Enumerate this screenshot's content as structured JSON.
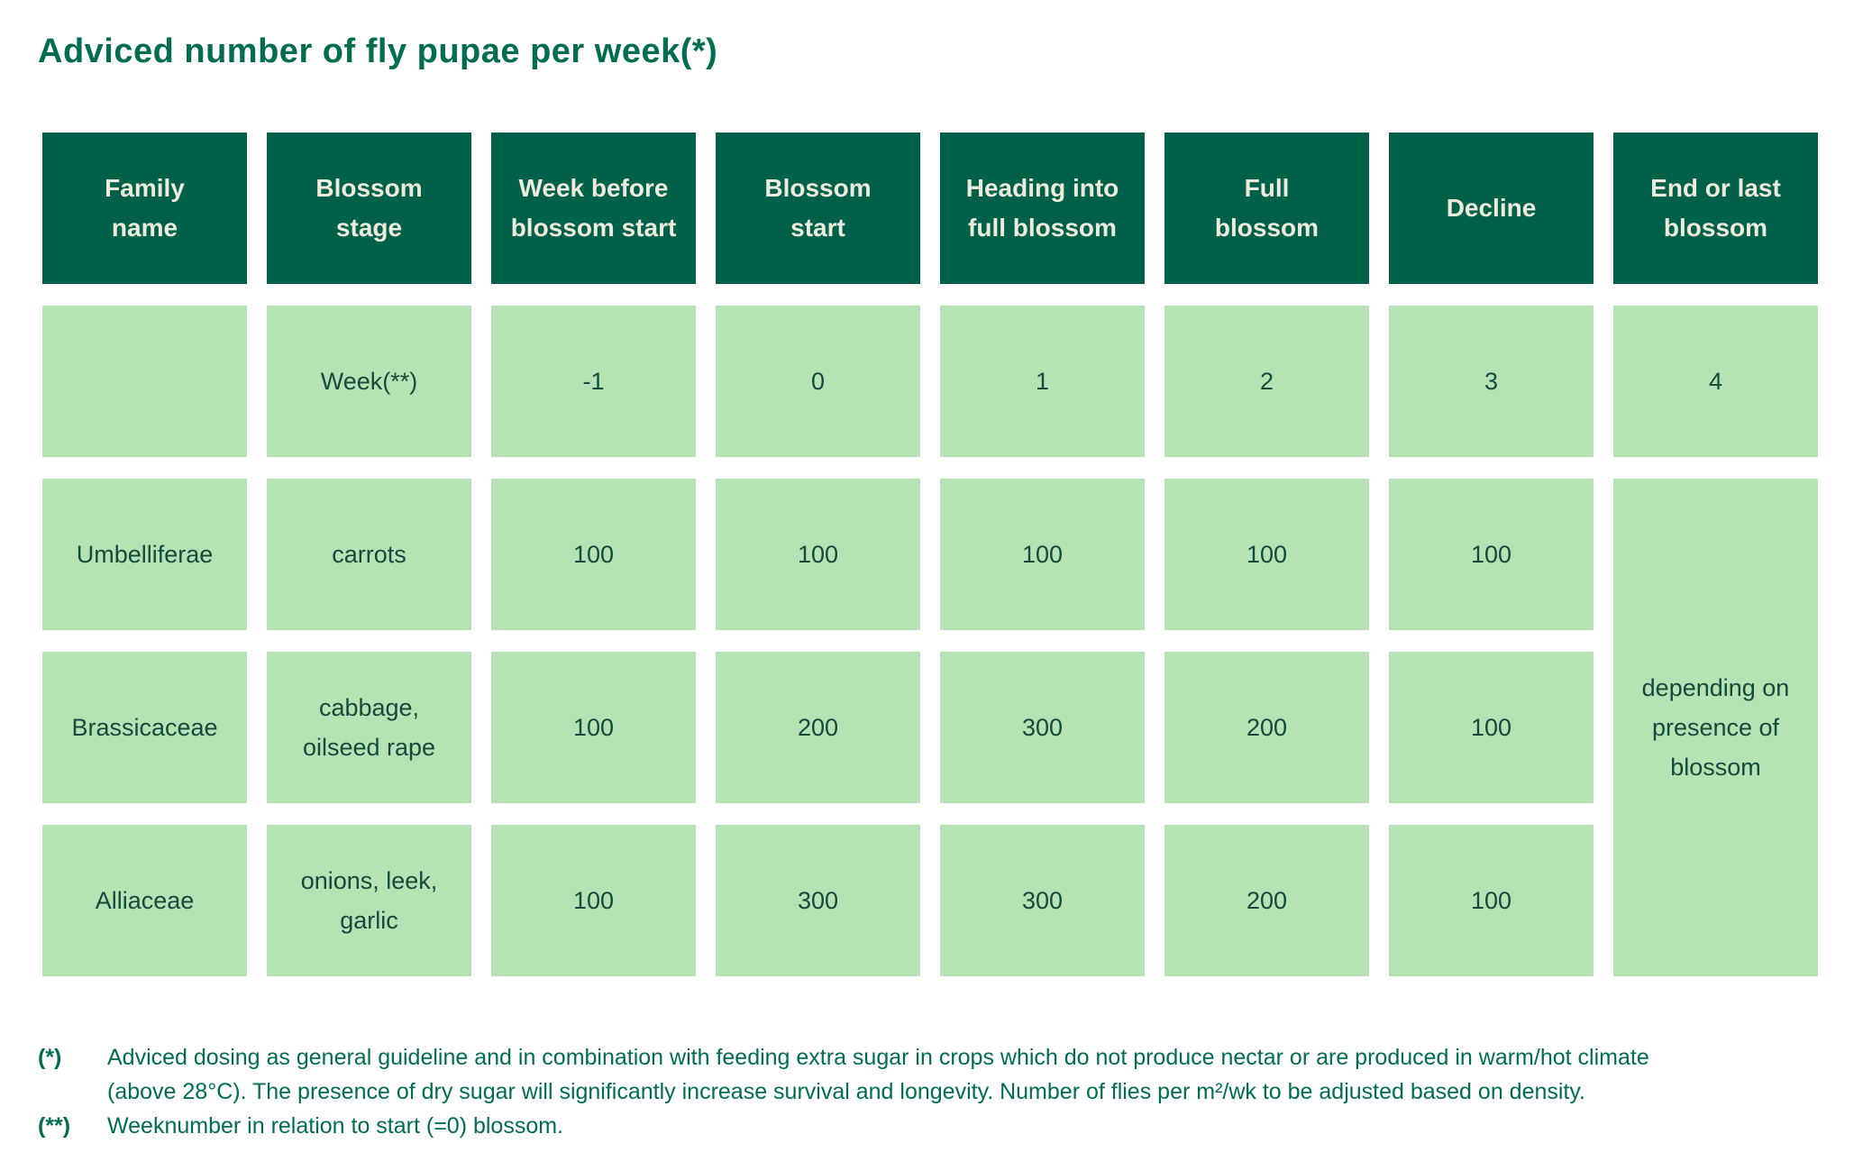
{
  "title": "Adviced number of fly pupae per week(*)",
  "table": {
    "columns": [
      "Family\nname",
      "Blossom\nstage",
      "Week before\nblossom start",
      "Blossom\nstart",
      "Heading into\nfull blossom",
      "Full\nblossom",
      "Decline",
      "End or last\nblossom"
    ],
    "week_row": {
      "label": "Week(**)",
      "values": [
        "-1",
        "0",
        "1",
        "2",
        "3",
        "4"
      ]
    },
    "rows": [
      {
        "family": "Umbelliferae",
        "stage": "carrots",
        "values": [
          "100",
          "100",
          "100",
          "100",
          "100"
        ]
      },
      {
        "family": "Brassicaceae",
        "stage": "cabbage,\noilseed rape",
        "values": [
          "100",
          "200",
          "300",
          "200",
          "100"
        ]
      },
      {
        "family": "Alliaceae",
        "stage": "onions, leek,\ngarlic",
        "values": [
          "100",
          "300",
          "300",
          "200",
          "100"
        ]
      }
    ],
    "merged_note": "depending on\npresence of\nblossom"
  },
  "footnotes": [
    {
      "marker": "(*)",
      "text": "Adviced dosing as general guideline and in combination with feeding extra sugar in crops which do not produce nectar or are produced in warm/hot climate (above 28°C). The presence of dry sugar will significantly increase survival and longevity. Number of flies per m²/wk to be adjusted based on density."
    },
    {
      "marker": "(**)",
      "text": "Weeknumber in relation to start (=0) blossom."
    }
  ],
  "colors": {
    "header_bg": "#00614A",
    "header_text": "#EFEBDC",
    "cell_bg": "#B5E3B4",
    "cell_text": "#154A3C",
    "title_text": "#006D51",
    "page_bg": "#FFFFFF"
  }
}
